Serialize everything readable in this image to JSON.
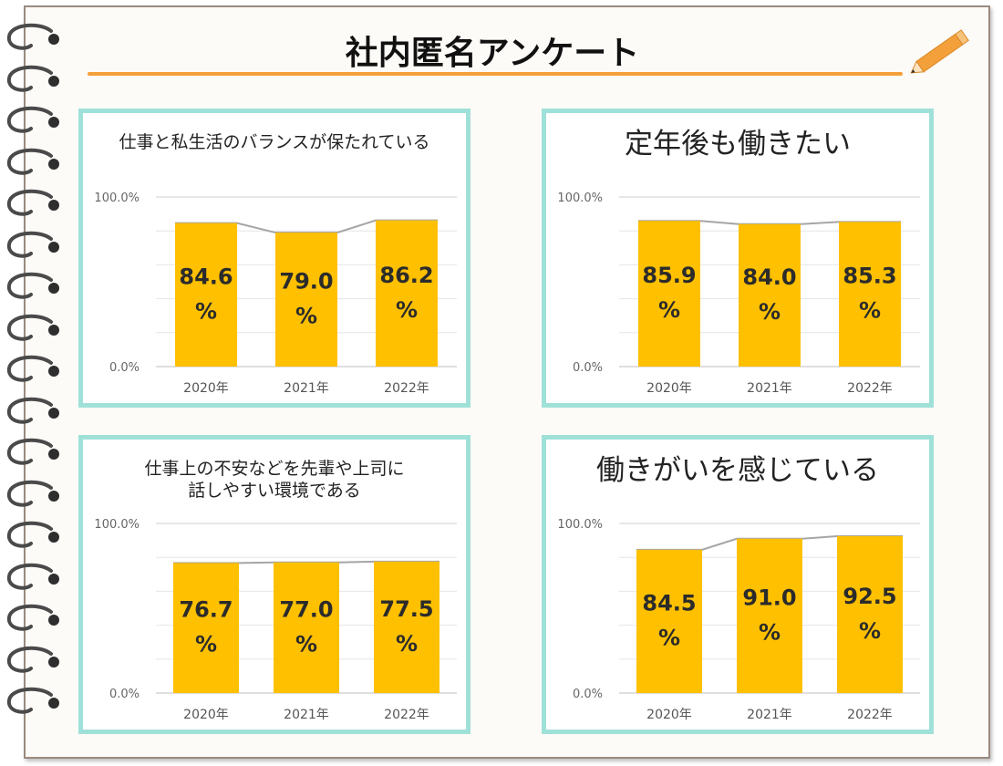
{
  "title": "社内匿名アンケート",
  "colors": {
    "bar": "#FFC000",
    "panel_border": "#9FE1D8",
    "title_rule": "#F4A03A",
    "trend_line": "#A6A6A6"
  },
  "icons": {
    "decoration": "pencil-icon",
    "binding": "spiral-ring-icon"
  },
  "chart_data": [
    {
      "type": "bar",
      "title": "仕事と私生活のバランスが保たれている",
      "categories": [
        "2020年",
        "2021年",
        "2022年"
      ],
      "values": [
        84.6,
        79.0,
        86.2
      ],
      "value_labels": [
        "84.6",
        "79.0",
        "86.2"
      ],
      "unit": "%",
      "yticks": [
        "100.0%",
        "0.0%"
      ],
      "ylim": [
        0,
        100
      ],
      "grid": true,
      "trend_line": true
    },
    {
      "type": "bar",
      "title": "定年後も働きたい",
      "categories": [
        "2020年",
        "2021年",
        "2022年"
      ],
      "values": [
        85.9,
        84.0,
        85.3
      ],
      "value_labels": [
        "85.9",
        "84.0",
        "85.3"
      ],
      "unit": "%",
      "yticks": [
        "100.0%",
        "0.0%"
      ],
      "ylim": [
        0,
        100
      ],
      "grid": true,
      "trend_line": true
    },
    {
      "type": "bar",
      "title": "仕事上の不安などを先輩や上司に\n話しやすい環境である",
      "categories": [
        "2020年",
        "2021年",
        "2022年"
      ],
      "values": [
        76.7,
        77.0,
        77.5
      ],
      "value_labels": [
        "76.7",
        "77.0",
        "77.5"
      ],
      "unit": "%",
      "yticks": [
        "100.0%",
        "0.0%"
      ],
      "ylim": [
        0,
        100
      ],
      "grid": true,
      "trend_line": true
    },
    {
      "type": "bar",
      "title": "働きがいを感じている",
      "categories": [
        "2020年",
        "2021年",
        "2022年"
      ],
      "values": [
        84.5,
        91.0,
        92.5
      ],
      "value_labels": [
        "84.5",
        "91.0",
        "92.5"
      ],
      "unit": "%",
      "yticks": [
        "100.0%",
        "0.0%"
      ],
      "ylim": [
        0,
        100
      ],
      "grid": true,
      "trend_line": true
    }
  ]
}
